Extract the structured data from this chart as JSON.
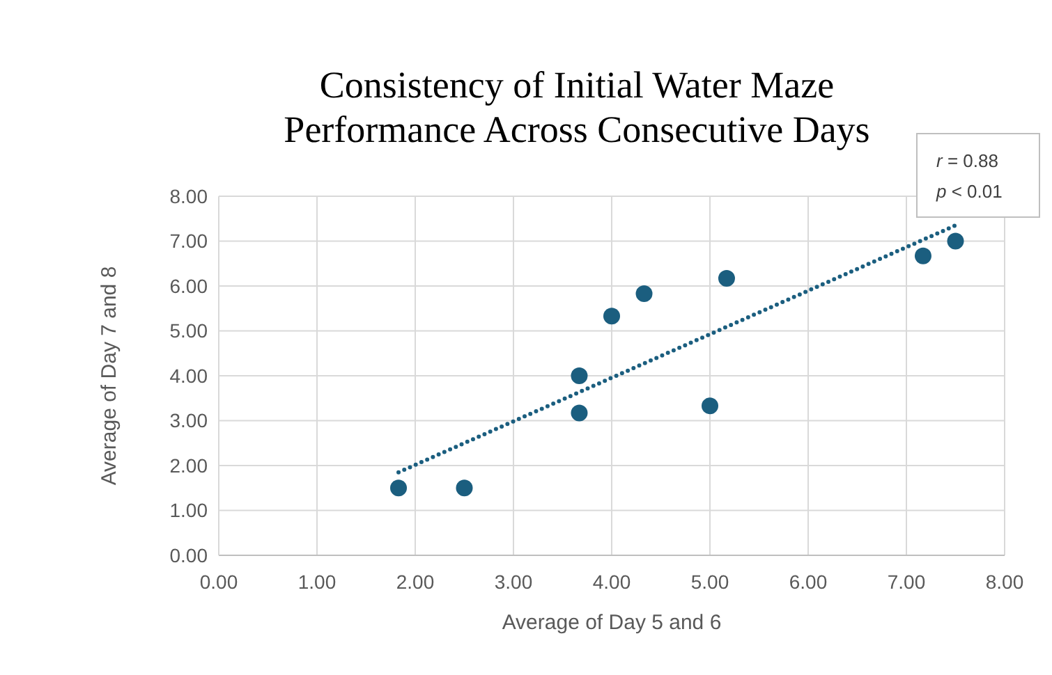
{
  "chart_data": {
    "type": "scatter",
    "title": "Consistency of Initial Water Maze Performance Across Consecutive Days",
    "xlabel": "Average of Day 5 and 6",
    "ylabel": "Average of Day 7 and 8",
    "xlim": [
      0,
      8
    ],
    "ylim": [
      0,
      8
    ],
    "xticks": [
      {
        "value": 0,
        "label": "0.00"
      },
      {
        "value": 1,
        "label": "1.00"
      },
      {
        "value": 2,
        "label": "2.00"
      },
      {
        "value": 3,
        "label": "3.00"
      },
      {
        "value": 4,
        "label": "4.00"
      },
      {
        "value": 5,
        "label": "5.00"
      },
      {
        "value": 6,
        "label": "6.00"
      },
      {
        "value": 7,
        "label": "7.00"
      },
      {
        "value": 8,
        "label": "8.00"
      }
    ],
    "yticks": [
      {
        "value": 0,
        "label": "0.00"
      },
      {
        "value": 1,
        "label": "1.00"
      },
      {
        "value": 2,
        "label": "2.00"
      },
      {
        "value": 3,
        "label": "3.00"
      },
      {
        "value": 4,
        "label": "4.00"
      },
      {
        "value": 5,
        "label": "5.00"
      },
      {
        "value": 6,
        "label": "6.00"
      },
      {
        "value": 7,
        "label": "7.00"
      },
      {
        "value": 8,
        "label": "8.00"
      }
    ],
    "grid": true,
    "marker": "circle",
    "annotations": [
      "r = 0.88",
      "p < 0.01"
    ],
    "series": [
      {
        "color": "#1b5e7f",
        "x": [
          1.83,
          2.5,
          3.67,
          3.67,
          4.0,
          4.33,
          5.0,
          5.17,
          7.17,
          7.5
        ],
        "values": [
          1.5,
          1.5,
          4.0,
          3.17,
          5.33,
          5.83,
          3.33,
          6.17,
          6.67,
          7.0
        ]
      },
      {
        "type": "line",
        "color": "#1b5e7f",
        "line_style": "dotted",
        "marker": "none",
        "x": [
          1.83,
          7.5
        ],
        "values": [
          1.85,
          7.35
        ]
      }
    ]
  }
}
